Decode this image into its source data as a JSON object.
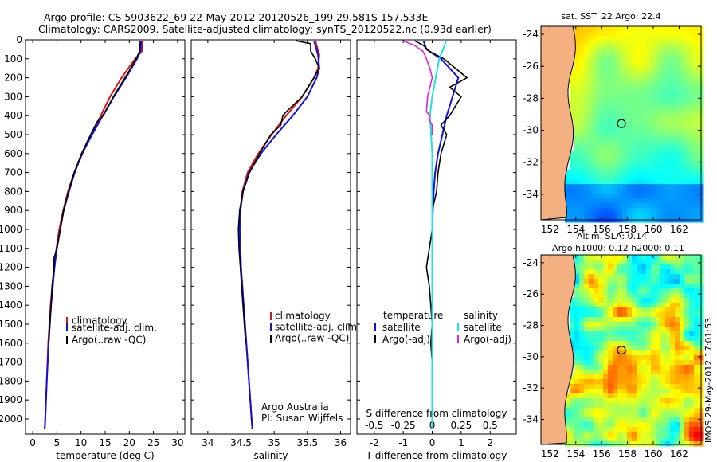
{
  "header": {
    "line1": "Argo profile: CS 5903622_69 22-May-2012 20120526_199 29.581S 157.533E",
    "line2": "Climatology: CARS2009. Satellite-adjusted climatology: synTS_20120522.nc (0.93d earlier)"
  },
  "colors": {
    "clim": "#e01010",
    "sat": "#1010e0",
    "argo": "#000000",
    "sal_sat": "#20e0e0",
    "sal_argo": "#e020e0",
    "land": "#f4b081"
  },
  "chart_data": [
    {
      "id": "temperature",
      "type": "line",
      "xlabel": "temperature (deg C)",
      "ylabel": "",
      "xlim": [
        -1.5,
        31.5
      ],
      "ylim": [
        2080,
        0
      ],
      "xticks": [
        0,
        5,
        10,
        15,
        20,
        25,
        30
      ],
      "yticks": [
        0,
        100,
        200,
        300,
        400,
        500,
        600,
        700,
        800,
        900,
        1000,
        1100,
        1200,
        1300,
        1400,
        1500,
        1600,
        1700,
        1800,
        1900,
        2000
      ],
      "legend": [
        "climatology",
        "satellite-adj. clim.",
        "Argo(..raw -QC)"
      ],
      "series": [
        {
          "name": "climatology",
          "depth": [
            5,
            60,
            100,
            200,
            300,
            400,
            500,
            600,
            700,
            800,
            900,
            1000,
            1100,
            1200,
            1400,
            1600,
            1800,
            2000,
            2050
          ],
          "values": [
            22.8,
            22.6,
            21.2,
            18.4,
            16.0,
            14.1,
            12.2,
            10.3,
            8.6,
            7.3,
            6.3,
            5.5,
            4.9,
            4.4,
            3.7,
            3.2,
            2.9,
            2.6,
            2.5
          ]
        },
        {
          "name": "satellite-adj. clim.",
          "depth": [
            5,
            60,
            100,
            200,
            300,
            400,
            500,
            600,
            700,
            800,
            900,
            1000,
            1100,
            1200,
            1400,
            1600,
            1800,
            2000,
            2050
          ],
          "values": [
            22.5,
            22.3,
            21.6,
            19.3,
            16.8,
            14.5,
            12.3,
            10.2,
            8.7,
            7.5,
            6.4,
            5.7,
            5.0,
            4.5,
            3.8,
            3.3,
            2.9,
            2.6,
            2.5
          ]
        },
        {
          "name": "Argo(..raw -QC)",
          "depth": [
            5,
            30,
            60,
            90,
            150,
            200,
            300,
            400,
            430,
            500,
            600,
            700,
            800,
            900,
            1000,
            1100,
            1150,
            1200,
            1300,
            1400,
            1500,
            1600
          ],
          "values": [
            22.3,
            22.2,
            22.1,
            21.6,
            20.3,
            19.1,
            16.7,
            14.6,
            13.4,
            12.0,
            10.1,
            8.6,
            7.4,
            6.4,
            5.7,
            5.0,
            4.4,
            4.4,
            4.0,
            3.8,
            3.5,
            3.3
          ]
        }
      ]
    },
    {
      "id": "salinity",
      "type": "line",
      "xlabel": "salinity",
      "ylabel": "",
      "xlim": [
        33.75,
        36.15
      ],
      "ylim": [
        2080,
        0
      ],
      "xticks": [
        34,
        34.5,
        35,
        35.5,
        36
      ],
      "legend": [
        "climatology",
        "satellite-adj. clim.",
        "Argo(..raw -QC)"
      ],
      "annotation": [
        "Argo Australia",
        "PI: Susan Wijffels"
      ],
      "series": [
        {
          "name": "climatology",
          "depth": [
            5,
            80,
            150,
            200,
            300,
            400,
            500,
            600,
            700,
            800,
            900,
            1000,
            1100,
            1200,
            1300,
            1400,
            1600,
            1800,
            2000,
            2050
          ],
          "values": [
            35.62,
            35.68,
            35.66,
            35.6,
            35.42,
            35.18,
            34.96,
            34.76,
            34.6,
            34.52,
            34.49,
            34.48,
            34.49,
            34.5,
            34.52,
            34.54,
            34.58,
            34.62,
            34.66,
            34.67
          ]
        },
        {
          "name": "satellite-adj. clim.",
          "depth": [
            5,
            80,
            150,
            200,
            300,
            400,
            500,
            600,
            700,
            800,
            900,
            1000,
            1100,
            1200,
            1300,
            1400,
            1600,
            1800,
            2000,
            2050
          ],
          "values": [
            35.6,
            35.66,
            35.68,
            35.64,
            35.5,
            35.28,
            35.03,
            34.8,
            34.62,
            34.53,
            34.49,
            34.48,
            34.49,
            34.5,
            34.52,
            34.54,
            34.58,
            34.62,
            34.66,
            34.67
          ]
        },
        {
          "name": "Argo(..raw -QC)",
          "depth": [
            5,
            20,
            60,
            100,
            150,
            200,
            300,
            380,
            400,
            450,
            500,
            600,
            700,
            800,
            900,
            1000,
            1100,
            1200,
            1300,
            1400,
            1500,
            1600
          ],
          "values": [
            35.33,
            35.55,
            35.55,
            35.62,
            35.68,
            35.6,
            35.42,
            35.18,
            35.13,
            35.1,
            34.95,
            34.78,
            34.63,
            34.53,
            34.48,
            34.46,
            34.47,
            34.49,
            34.51,
            34.53,
            34.55,
            34.57
          ]
        }
      ]
    },
    {
      "id": "difference",
      "type": "line",
      "xlabel": "T difference from climatology",
      "xlabel_top": "S difference from climatology",
      "xlim": [
        -2.6,
        2.9
      ],
      "ylim": [
        2080,
        0
      ],
      "xticks": [
        -2,
        -1,
        0,
        1,
        2
      ],
      "xticks_s": [
        "-0.5",
        "-0.25",
        "0",
        "0.25",
        "0.5"
      ],
      "legend_left": [
        "temperature",
        "satellite",
        "Argo(-adj)"
      ],
      "legend_right": [
        "salinity",
        "satellite",
        "Argo(-adj)"
      ],
      "series": [
        {
          "name": "T satellite",
          "depth": [
            5,
            50,
            100,
            200,
            250,
            300,
            400,
            500,
            600,
            700,
            800,
            900,
            1000,
            1100,
            1200,
            1400,
            1600,
            1800,
            2050
          ],
          "values": [
            -0.3,
            -0.2,
            0.3,
            0.9,
            0.8,
            0.7,
            0.5,
            0.35,
            0.2,
            0.1,
            0.05,
            0.02,
            0.0,
            0.0,
            0.0,
            0.0,
            0.0,
            0.0,
            0.0
          ]
        },
        {
          "name": "T Argo(-adj)",
          "depth": [
            5,
            30,
            60,
            100,
            200,
            250,
            300,
            350,
            400,
            450,
            500,
            600,
            700,
            800,
            900,
            1000,
            1100,
            1200,
            1300,
            1400,
            1500,
            1600,
            1700
          ],
          "values": [
            -0.6,
            -0.3,
            -0.1,
            0.4,
            1.2,
            0.6,
            1.0,
            0.8,
            0.6,
            0.3,
            0.5,
            0.3,
            0.2,
            0.15,
            0.0,
            0.0,
            -0.1,
            -0.2,
            -0.1,
            -0.05,
            0.0,
            -0.05,
            0.0
          ]
        },
        {
          "name": "S satellite",
          "depth": [
            5,
            40,
            100,
            200,
            300,
            400,
            500,
            600,
            700,
            800,
            1000,
            1200,
            1400,
            1600,
            1800,
            2050
          ],
          "values": [
            0.12,
            0.1,
            0.06,
            0.03,
            0.0,
            -0.02,
            -0.01,
            0.0,
            0.0,
            0.0,
            0.0,
            0.0,
            0.0,
            0.0,
            0.0,
            0.0
          ]
        },
        {
          "name": "S Argo(-adj)",
          "depth": [
            5,
            30,
            60,
            100,
            150,
            200,
            300,
            380,
            400,
            420,
            450,
            500
          ],
          "values": [
            -0.25,
            -0.15,
            -0.08,
            -0.05,
            -0.02,
            0.0,
            -0.04,
            -0.05,
            -0.02,
            -0.03,
            0.0,
            0.0
          ]
        }
      ]
    },
    {
      "id": "sst_map",
      "type": "heatmap",
      "title": "sat. SST: 22 Argo: 22.4",
      "xticks": [
        152,
        154,
        156,
        158,
        160,
        162
      ],
      "yticks": [
        -24,
        -26,
        -28,
        -30,
        -32,
        -34
      ],
      "marker": {
        "lon": 157.533,
        "lat": -29.581
      }
    },
    {
      "id": "sla_map",
      "type": "heatmap",
      "title": [
        "Altim. SLA: 0.14",
        "Argo h1000: 0.12 h2000: 0.11"
      ],
      "xticks": [
        152,
        154,
        156,
        158,
        160,
        162
      ],
      "yticks": [
        -24,
        -26,
        -28,
        -30,
        -32,
        -34
      ],
      "marker": {
        "lon": 157.533,
        "lat": -29.581
      }
    }
  ],
  "footer": {
    "timestamp": "IMOS 29-May-2012 17:01:53"
  }
}
